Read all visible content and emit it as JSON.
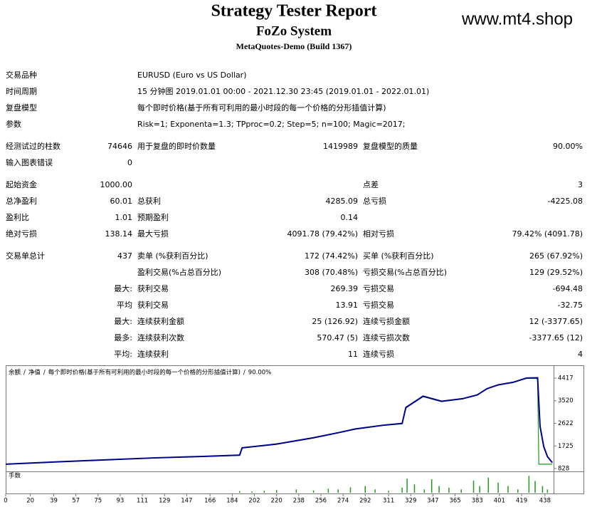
{
  "header": {
    "title": "Strategy Tester Report",
    "subtitle": "FoZo System",
    "build": "MetaQuotes-Demo (Build 1367)",
    "watermark": "www.mt4.shop"
  },
  "report": {
    "sections": [
      [
        [
          "交易品种",
          null,
          "EURUSD (Euro vs US Dollar)"
        ],
        [
          "时间周期",
          null,
          "15 分钟图 2019.01.01 00:00 - 2021.12.30 23:45 (2019.01.01 - 2022.01.01)"
        ],
        [
          "复盘模型",
          null,
          "每个即时价格(基于所有可利用的最小时段的每一个价格的分形插值计算)"
        ],
        [
          "参数",
          null,
          "Risk=1; Exponenta=1.3; TPproc=0.2; Step=5; n=100; Magic=2017;"
        ]
      ],
      [
        [
          "经测试过的柱数",
          "74646",
          "用于复盘的即时价数量",
          "1419989",
          "复盘模型的质量",
          "90.00%"
        ],
        [
          "输入图表错误",
          "0"
        ]
      ],
      [
        [
          "起始资金",
          "1000.00",
          null,
          null,
          "点差",
          "3"
        ],
        [
          "总净盈利",
          "60.01",
          "总获利",
          "4285.09",
          "总亏损",
          "-4225.08"
        ],
        [
          "盈利比",
          "1.01",
          "预期盈利",
          "0.14"
        ],
        [
          "绝对亏损",
          "138.14",
          "最大亏损",
          "4091.78 (79.42%)",
          "相对亏损",
          "79.42% (4091.78)"
        ]
      ],
      [
        [
          "交易单总计",
          "437",
          "卖单 (%获利百分比)",
          "172 (74.42%)",
          "买单 (%获利百分比)",
          "265 (67.92%)"
        ],
        [
          null,
          null,
          "盈利交易(%占总百分比)",
          "308 (70.48%)",
          "亏损交易(%占总百分比)",
          "129 (29.52%)"
        ],
        [
          null,
          "最大:",
          "获利交易",
          "269.39",
          "亏损交易",
          "-694.48"
        ],
        [
          null,
          "平均",
          "获利交易",
          "13.91",
          "亏损交易",
          "-32.75"
        ],
        [
          null,
          "最大:",
          "连续获利金额",
          "25 (126.92)",
          "连续亏损金额",
          "12 (-3377.65)"
        ],
        [
          null,
          "最多:",
          "连续获利次数",
          "570.47 (5)",
          "连续亏损次数",
          "-3377.65 (12)"
        ],
        [
          null,
          "平均:",
          "连续获利",
          "11",
          "连续亏损",
          "4"
        ]
      ]
    ]
  },
  "chart_data": {
    "type": "line",
    "separator": "/",
    "model": "每个即时价格(基于所有可利用的最小时段的每一个价格的分形插值计算)",
    "quality": "90.00%",
    "xlim": [
      0,
      445
    ],
    "xticks": [
      0,
      20,
      39,
      57,
      75,
      93,
      111,
      129,
      147,
      166,
      184,
      202,
      220,
      238,
      256,
      274,
      292,
      311,
      329,
      347,
      365,
      383,
      401,
      419,
      438
    ],
    "ylim": [
      743,
      4813
    ],
    "yticks": [
      828,
      1725,
      2622,
      3520,
      4417
    ],
    "series": [
      {
        "name": "余额",
        "color": "#00008b",
        "x": [
          0,
          40,
          80,
          120,
          160,
          190,
          192,
          220,
          250,
          270,
          284,
          307,
          322,
          325,
          339,
          354,
          371,
          383,
          391,
          400,
          412,
          423,
          432,
          434,
          437,
          440,
          444
        ],
        "values": [
          1000,
          1090,
          1170,
          1250,
          1310,
          1360,
          1650,
          1800,
          2050,
          2250,
          2400,
          2550,
          2620,
          3250,
          3700,
          3500,
          3600,
          3750,
          4000,
          4150,
          4250,
          4420,
          4430,
          2500,
          1700,
          1300,
          1060
        ]
      },
      {
        "name": "净值",
        "color": "#1e9a1e",
        "x": [
          0,
          40,
          80,
          120,
          160,
          190,
          192,
          220,
          250,
          270,
          284,
          307,
          322,
          325,
          339,
          354,
          371,
          383,
          391,
          400,
          412,
          423,
          432,
          433,
          444
        ],
        "values": [
          1000,
          1085,
          1165,
          1245,
          1305,
          1350,
          1640,
          1790,
          2040,
          2240,
          2390,
          2540,
          2600,
          3230,
          3680,
          3480,
          3590,
          3740,
          3990,
          4140,
          4240,
          4410,
          4400,
          1000,
          1000
        ]
      }
    ],
    "volume": {
      "label": "手数",
      "color": "#1e9a1e",
      "ylim": [
        0,
        0.55
      ],
      "x": [
        190,
        200,
        210,
        220,
        236,
        250,
        262,
        270,
        280,
        292,
        300,
        311,
        322,
        326,
        332,
        340,
        346,
        352,
        360,
        370,
        380,
        385,
        392,
        400,
        408,
        416,
        425,
        430,
        436,
        440
      ],
      "values": [
        0.05,
        0.04,
        0.06,
        0.08,
        0.1,
        0.07,
        0.12,
        0.1,
        0.16,
        0.2,
        0.1,
        0.06,
        0.15,
        0.42,
        0.25,
        0.1,
        0.4,
        0.2,
        0.15,
        0.1,
        0.36,
        0.2,
        0.45,
        0.3,
        0.2,
        0.1,
        0.5,
        0.35,
        0.2,
        0.1
      ]
    }
  }
}
